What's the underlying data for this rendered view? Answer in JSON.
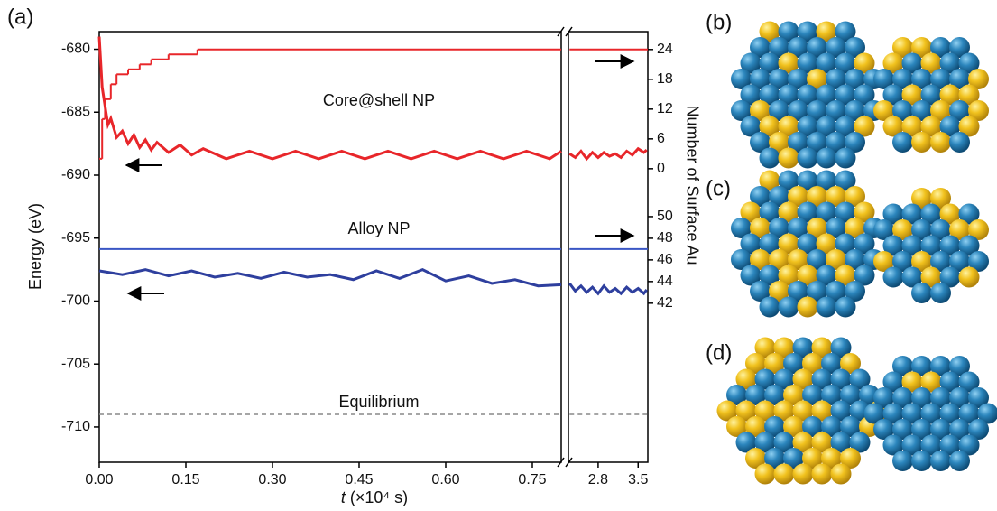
{
  "chart_data": {
    "type": "line",
    "panel_labels": [
      "(a)",
      "(b)",
      "(c)",
      "(d)"
    ],
    "y_label": "Energy (eV)",
    "y2_label": "Number of Surface Au",
    "x_label_var": "t",
    "x_label_unit": " (×10⁴ s)",
    "annotations": [
      "Core@shell NP",
      "Alloy NP",
      "Equilibrium"
    ],
    "xlim": [
      0,
      0.8
    ],
    "xticks": [
      {
        "value": 0,
        "label": "0.00"
      },
      {
        "value": 0.15,
        "label": "0.15"
      },
      {
        "value": 0.3,
        "label": "0.30"
      },
      {
        "value": 0.45,
        "label": "0.45"
      },
      {
        "value": 0.6,
        "label": "0.60"
      },
      {
        "value": 0.75,
        "label": "0.75"
      }
    ],
    "x2lim": [
      2.28,
      3.67
    ],
    "x2ticks": [
      2.8,
      3.5
    ],
    "ylim": [
      -712.8,
      -678.6
    ],
    "yticks": [
      -680,
      -685,
      -690,
      -695,
      -700,
      -705,
      -710
    ],
    "y2lim": [
      -59.1,
      27.6
    ],
    "y2ticks": [
      0,
      6,
      12,
      18,
      24
    ],
    "y3lim": [
      27.3,
      67.1
    ],
    "y3ticks": [
      42,
      44,
      46,
      48,
      50
    ],
    "series": [
      {
        "color": "#e8262a",
        "axis": "y",
        "width": 3,
        "x": [
          0,
          0.005,
          0.01,
          0.015,
          0.02,
          0.03,
          0.04,
          0.05,
          0.06,
          0.07,
          0.08,
          0.09,
          0.1,
          0.12,
          0.14,
          0.16,
          0.18,
          0.22,
          0.26,
          0.3,
          0.34,
          0.38,
          0.42,
          0.46,
          0.5,
          0.54,
          0.58,
          0.62,
          0.66,
          0.7,
          0.74,
          0.78,
          0.8,
          2.3,
          2.4,
          2.5,
          2.6,
          2.7,
          2.8,
          2.9,
          3.0,
          3.1,
          3.2,
          3.3,
          3.4,
          3.5,
          3.6,
          3.65
        ],
        "values": [
          -679,
          -683,
          -684.5,
          -686,
          -685.5,
          -687,
          -686.5,
          -687.5,
          -686.8,
          -687.8,
          -687.2,
          -688,
          -687.4,
          -688.2,
          -687.6,
          -688.4,
          -687.9,
          -688.7,
          -688.1,
          -688.7,
          -688.1,
          -688.7,
          -688.1,
          -688.7,
          -688.1,
          -688.7,
          -688.1,
          -688.7,
          -688.1,
          -688.7,
          -688.1,
          -688.7,
          -688.1,
          -688.3,
          -688.6,
          -688.1,
          -688.7,
          -688.2,
          -688.6,
          -688.2,
          -688.5,
          -688.3,
          -688.6,
          -688.1,
          -688.4,
          -687.9,
          -688.2,
          -688
        ]
      },
      {
        "color": "#e8262a",
        "axis": "y2",
        "width": 2,
        "step": true,
        "x": [
          0,
          0.005,
          0.01,
          0.02,
          0.03,
          0.05,
          0.07,
          0.09,
          0.12,
          0.17,
          0.8,
          2.3,
          3.67
        ],
        "values": [
          2,
          10,
          14,
          17,
          19,
          20,
          21,
          22,
          23,
          24,
          24,
          24,
          24
        ]
      },
      {
        "color": "#2e3f9e",
        "axis": "y",
        "width": 3,
        "x": [
          0,
          0.04,
          0.08,
          0.12,
          0.16,
          0.2,
          0.24,
          0.28,
          0.32,
          0.36,
          0.4,
          0.44,
          0.48,
          0.52,
          0.56,
          0.6,
          0.64,
          0.68,
          0.72,
          0.76,
          0.8,
          2.3,
          2.4,
          2.5,
          2.6,
          2.7,
          2.8,
          2.9,
          3.0,
          3.1,
          3.2,
          3.3,
          3.4,
          3.5,
          3.6,
          3.65
        ],
        "values": [
          -697.6,
          -697.9,
          -697.5,
          -698,
          -697.6,
          -698.1,
          -697.8,
          -698.2,
          -697.7,
          -698.1,
          -697.9,
          -698.3,
          -697.6,
          -698.2,
          -697.5,
          -698.4,
          -698,
          -698.6,
          -698.3,
          -698.8,
          -698.7,
          -698.6,
          -699.2,
          -698.8,
          -699.3,
          -698.9,
          -699.4,
          -698.8,
          -699.3,
          -699,
          -699.4,
          -698.9,
          -699.3,
          -699,
          -699.4,
          -699.1
        ]
      },
      {
        "color": "#3a56c4",
        "axis": "y3",
        "width": 2,
        "x": [
          0,
          0.8,
          2.3,
          3.67
        ],
        "values": [
          47,
          47,
          47,
          47
        ]
      },
      {
        "color": "#888888",
        "axis": "y",
        "width": 1.5,
        "dashed": true,
        "x": [
          0,
          0.8,
          2.3,
          3.67
        ],
        "values": [
          -709,
          -709,
          -709,
          -709
        ]
      }
    ]
  }
}
